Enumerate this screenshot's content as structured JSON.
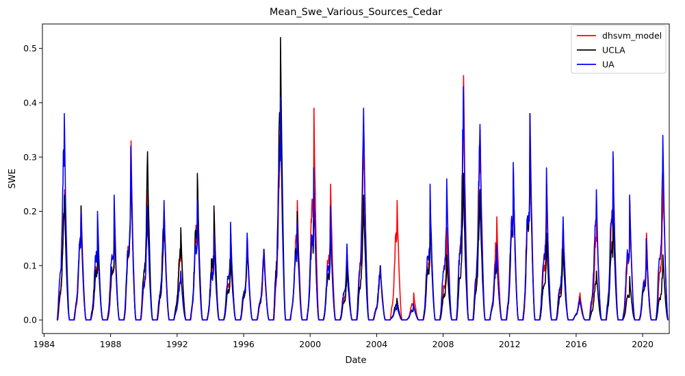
{
  "chart_data": {
    "type": "line",
    "title": "Mean_Swe_Various_Sources_Cedar",
    "xlabel": "Date",
    "ylabel": "SWE",
    "xlim": [
      1983.9,
      2021.6
    ],
    "ylim": [
      -0.025,
      0.545
    ],
    "x_ticks": [
      "1984",
      "1988",
      "1992",
      "1996",
      "2000",
      "2004",
      "2008",
      "2012",
      "2016",
      "2020"
    ],
    "y_ticks": [
      "0.0",
      "0.1",
      "0.2",
      "0.3",
      "0.4",
      "0.5"
    ],
    "grid": false,
    "legend_position": "top-right",
    "season_start_years": [
      1984,
      1985,
      1986,
      1987,
      1988,
      1989,
      1990,
      1991,
      1992,
      1993,
      1994,
      1995,
      1996,
      1997,
      1998,
      1999,
      2000,
      2001,
      2002,
      2003,
      2004,
      2005,
      2006,
      2007,
      2008,
      2009,
      2010,
      2011,
      2012,
      2013,
      2014,
      2015,
      2016,
      2017,
      2018,
      2019,
      2020
    ],
    "series": [
      {
        "name": "dhsvm_model",
        "color": "#ff0000",
        "peaks": [
          0.24,
          0.21,
          0.16,
          0.18,
          0.33,
          0.24,
          0.2,
          0.16,
          0.26,
          0.2,
          0.16,
          0.15,
          0.13,
          0.42,
          0.22,
          0.39,
          0.25,
          0.12,
          0.35,
          0.1,
          0.22,
          0.05,
          0.22,
          0.17,
          0.45,
          0.35,
          0.19,
          0.28,
          0.38,
          0.25,
          0.17,
          0.05,
          0.2,
          0.3,
          0.22,
          0.16,
          0.28
        ]
      },
      {
        "name": "UCLA",
        "color": "#000000",
        "peaks": [
          0.23,
          0.21,
          0.15,
          0.19,
          0.3,
          0.31,
          0.19,
          0.17,
          0.27,
          0.21,
          0.13,
          0.14,
          0.13,
          0.52,
          0.2,
          0.26,
          0.18,
          0.1,
          0.23,
          0.1,
          0.04,
          0.03,
          0.2,
          0.12,
          0.27,
          0.24,
          0.13,
          0.27,
          0.36,
          0.16,
          0.13,
          0.04,
          0.09,
          0.21,
          0.08,
          0.14,
          0.12
        ]
      },
      {
        "name": "UA",
        "color": "#0000ff",
        "peaks": [
          0.38,
          0.2,
          0.2,
          0.23,
          0.32,
          0.21,
          0.22,
          0.09,
          0.22,
          0.16,
          0.18,
          0.16,
          0.13,
          0.41,
          0.18,
          0.28,
          0.21,
          0.14,
          0.39,
          0.1,
          0.03,
          0.03,
          0.25,
          0.26,
          0.43,
          0.36,
          0.14,
          0.29,
          0.38,
          0.28,
          0.19,
          0.04,
          0.24,
          0.31,
          0.23,
          0.15,
          0.34
        ]
      }
    ]
  }
}
